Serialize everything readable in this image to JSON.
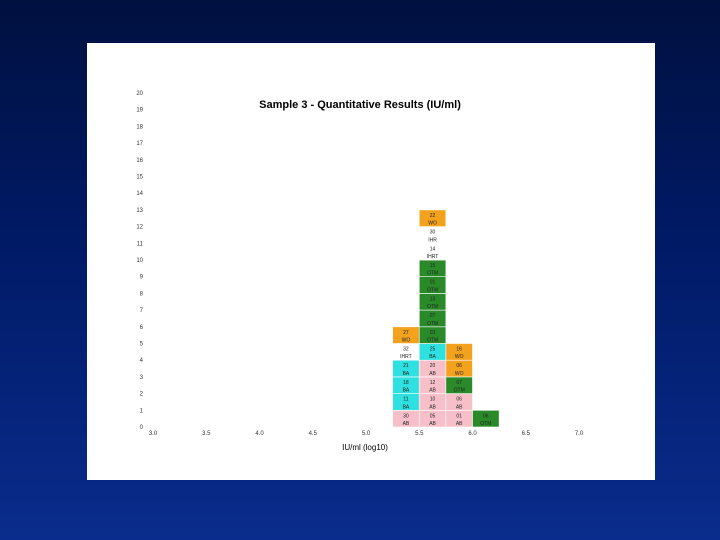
{
  "colors": {
    "WO": "#f3a21e",
    "IHRT": "#ffffff",
    "OTM": "#2a8a2a",
    "BA": "#2ee0e0",
    "AB": "#f7c0c8"
  },
  "chart_data": {
    "type": "bar",
    "title": "Sample 3 - Quantitative Results (IU/ml)",
    "xlabel": "IU/ml (log10)",
    "ylabel": "",
    "xlim": [
      3.0,
      7.0
    ],
    "ylim": [
      0,
      20
    ],
    "x_ticks": [
      "3.0",
      "3.5",
      "4.0",
      "4.5",
      "5.0",
      "5.5",
      "6.0",
      "6.5",
      "7.0"
    ],
    "y_ticks": [
      "0",
      "1",
      "2",
      "3",
      "4",
      "5",
      "6",
      "7",
      "8",
      "9",
      "10",
      "11",
      "12",
      "13",
      "14",
      "15",
      "16",
      "17",
      "18",
      "19",
      "20"
    ],
    "bin_width": 0.25,
    "columns": [
      {
        "x_start": 5.25,
        "cells": [
          {
            "code": "30",
            "lab": "AB",
            "group": "AB"
          },
          {
            "code": "11",
            "lab": "BA",
            "group": "BA"
          },
          {
            "code": "18",
            "lab": "BA",
            "group": "BA"
          },
          {
            "code": "21",
            "lab": "BA",
            "group": "BA"
          },
          {
            "code": "32",
            "lab": "IHRT",
            "group": "IHRT"
          },
          {
            "code": "27",
            "lab": "WO",
            "group": "WO"
          }
        ]
      },
      {
        "x_start": 5.5,
        "cells": [
          {
            "code": "05",
            "lab": "AB",
            "group": "AB"
          },
          {
            "code": "10",
            "lab": "AB",
            "group": "AB"
          },
          {
            "code": "12",
            "lab": "AB",
            "group": "AB"
          },
          {
            "code": "20",
            "lab": "AB",
            "group": "AB"
          },
          {
            "code": "25",
            "lab": "BA",
            "group": "BA"
          },
          {
            "code": "03",
            "lab": "OTM",
            "group": "OTM"
          },
          {
            "code": "07",
            "lab": "OTM",
            "group": "OTM"
          },
          {
            "code": "13",
            "lab": "OTM",
            "group": "OTM"
          },
          {
            "code": "01",
            "lab": "OTM",
            "group": "OTM"
          },
          {
            "code": "15",
            "lab": "OTM",
            "group": "OTM"
          },
          {
            "code": "14",
            "lab": "IHRT",
            "group": "IHRT"
          },
          {
            "code": "30",
            "lab": "IHR",
            "group": "IHRT"
          },
          {
            "code": "22",
            "lab": "WO",
            "group": "WO"
          }
        ]
      },
      {
        "x_start": 5.75,
        "cells": [
          {
            "code": "01",
            "lab": "AB",
            "group": "AB"
          },
          {
            "code": "06",
            "lab": "AB",
            "group": "AB"
          },
          {
            "code": "07",
            "lab": "OTM",
            "group": "OTM"
          },
          {
            "code": "06",
            "lab": "WO",
            "group": "WO"
          },
          {
            "code": "16",
            "lab": "WO",
            "group": "WO"
          }
        ]
      },
      {
        "x_start": 6.0,
        "cells": [
          {
            "code": "06",
            "lab": "OTM",
            "group": "OTM"
          }
        ]
      }
    ]
  }
}
